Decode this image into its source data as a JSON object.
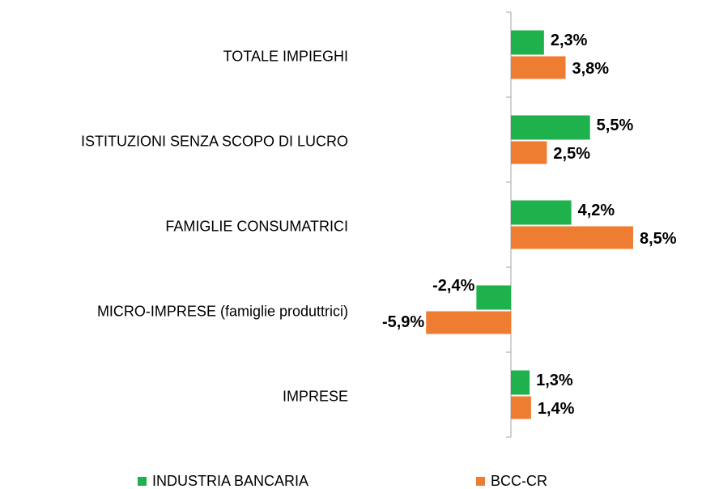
{
  "chart_data": {
    "type": "hbar",
    "categories": [
      "TOTALE IMPIEGHI",
      "ISTITUZIONI SENZA SCOPO DI LUCRO",
      "FAMIGLIE CONSUMATRICI",
      "MICRO-IMPRESE (famiglie produttrici)",
      "IMPRESE"
    ],
    "series": [
      {
        "name": "INDUSTRIA BANCARIA",
        "color": "#1fb24c",
        "values": [
          2.3,
          5.5,
          4.2,
          -2.4,
          1.3
        ],
        "value_labels": [
          "2,3%",
          "5,5%",
          "4,2%",
          "-2,4%",
          "1,3%"
        ]
      },
      {
        "name": "BCC-CR",
        "color": "#ef7d31",
        "values": [
          3.8,
          2.5,
          8.5,
          -5.9,
          1.4
        ],
        "value_labels": [
          "3,8%",
          "2,5%",
          "8,5%",
          "-5,9%",
          "1,4%"
        ]
      }
    ],
    "legend": "bottom"
  }
}
